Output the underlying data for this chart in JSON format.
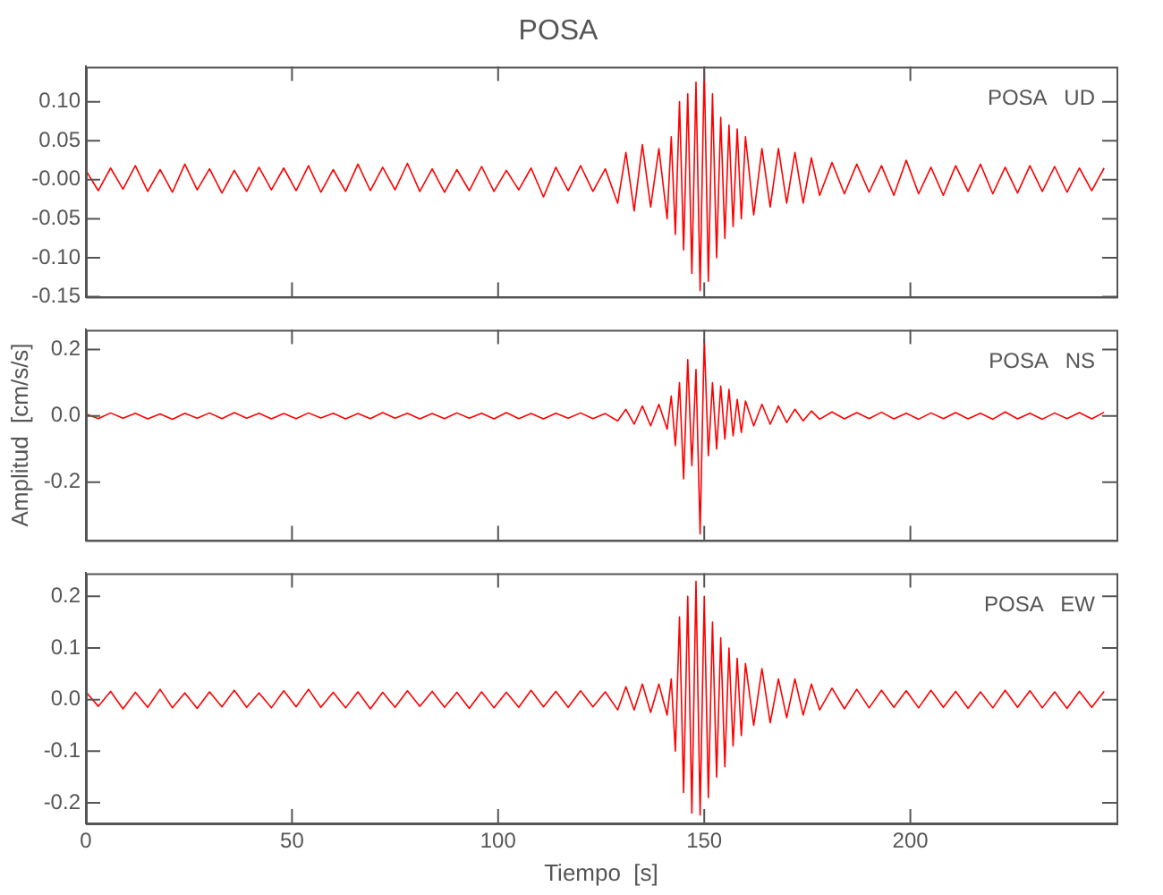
{
  "chart_data": [
    {
      "type": "line",
      "title": "POSA",
      "annotations": [
        "POSA   UD"
      ],
      "xlim": [
        0,
        250
      ],
      "xticks": [
        0,
        50,
        100,
        150,
        200
      ],
      "ylim": [
        -0.15,
        0.145
      ],
      "yticks": [
        {
          "value": -0.15,
          "label": "-0.15"
        },
        {
          "value": -0.1,
          "label": "-0.10"
        },
        {
          "value": -0.05,
          "label": "-0.05"
        },
        {
          "value": 0,
          "label": "-0.00"
        },
        {
          "value": 0.05,
          "label": "0.05"
        },
        {
          "value": 0.1,
          "label": "0.10"
        }
      ],
      "tick_labels": "y",
      "grid": false,
      "legend": false,
      "marker": "none",
      "line_style": "solid",
      "series": [
        {
          "color": "#ff0000",
          "x": [
            0,
            3,
            6,
            9,
            12,
            15,
            18,
            21,
            24,
            27,
            30,
            33,
            36,
            39,
            42,
            45,
            48,
            51,
            54,
            57,
            60,
            63,
            66,
            69,
            72,
            75,
            78,
            81,
            84,
            87,
            90,
            93,
            96,
            99,
            102,
            105,
            108,
            111,
            114,
            117,
            120,
            123,
            126,
            129,
            131,
            133,
            135,
            137,
            139,
            141,
            142,
            143,
            144,
            145,
            146,
            147,
            148,
            149,
            150,
            151,
            152,
            153,
            154,
            155,
            156,
            157,
            158,
            159,
            160,
            162,
            164,
            166,
            168,
            170,
            172,
            174,
            176,
            178,
            181,
            184,
            187,
            190,
            193,
            196,
            199,
            202,
            205,
            208,
            211,
            214,
            217,
            220,
            223,
            226,
            229,
            232,
            235,
            238,
            241,
            244,
            247
          ],
          "values": [
            0.012,
            -0.014,
            0.015,
            -0.012,
            0.018,
            -0.015,
            0.013,
            -0.016,
            0.02,
            -0.013,
            0.014,
            -0.017,
            0.012,
            -0.015,
            0.016,
            -0.013,
            0.015,
            -0.014,
            0.018,
            -0.016,
            0.013,
            -0.015,
            0.02,
            -0.014,
            0.016,
            -0.013,
            0.021,
            -0.015,
            0.014,
            -0.016,
            0.013,
            -0.014,
            0.017,
            -0.015,
            0.012,
            -0.013,
            0.015,
            -0.022,
            0.016,
            -0.014,
            0.018,
            -0.015,
            0.014,
            -0.03,
            0.035,
            -0.04,
            0.045,
            -0.035,
            0.04,
            -0.05,
            0.055,
            -0.07,
            0.1,
            -0.09,
            0.11,
            -0.12,
            0.125,
            -0.142,
            0.145,
            -0.13,
            0.11,
            -0.1,
            0.08,
            -0.075,
            0.07,
            -0.06,
            0.065,
            -0.05,
            0.055,
            -0.045,
            0.04,
            -0.035,
            0.04,
            -0.03,
            0.035,
            -0.03,
            0.028,
            -0.02,
            0.022,
            -0.018,
            0.02,
            -0.016,
            0.018,
            -0.02,
            0.025,
            -0.018,
            0.016,
            -0.02,
            0.018,
            -0.015,
            0.02,
            -0.018,
            0.016,
            -0.017,
            0.018,
            -0.015,
            0.017,
            -0.016,
            0.015,
            -0.014,
            0.015
          ]
        }
      ]
    },
    {
      "type": "line",
      "ylabel": "Amplitud  [cm/s/s]",
      "annotations": [
        "POSA   NS"
      ],
      "xlim": [
        0,
        250
      ],
      "xticks": [
        0,
        50,
        100,
        150,
        200
      ],
      "ylim": [
        -0.375,
        0.26
      ],
      "yticks": [
        {
          "value": -0.2,
          "label": "-0.2"
        },
        {
          "value": 0,
          "label": "0.0"
        },
        {
          "value": 0.2,
          "label": "0.2"
        }
      ],
      "tick_labels": "y",
      "grid": false,
      "legend": false,
      "marker": "none",
      "line_style": "solid",
      "series": [
        {
          "color": "#ff0000",
          "x": [
            0,
            3,
            6,
            9,
            12,
            15,
            18,
            21,
            24,
            27,
            30,
            33,
            36,
            39,
            42,
            45,
            48,
            51,
            54,
            57,
            60,
            63,
            66,
            69,
            72,
            75,
            78,
            81,
            84,
            87,
            90,
            93,
            96,
            99,
            102,
            105,
            108,
            111,
            114,
            117,
            120,
            123,
            126,
            129,
            131,
            133,
            135,
            137,
            139,
            141,
            142,
            143,
            144,
            145,
            146,
            147,
            148,
            149,
            150,
            151,
            152,
            153,
            154,
            155,
            156,
            157,
            158,
            159,
            160,
            162,
            164,
            166,
            168,
            170,
            172,
            174,
            176,
            178,
            181,
            184,
            187,
            190,
            193,
            196,
            199,
            202,
            205,
            208,
            211,
            214,
            217,
            220,
            223,
            226,
            229,
            232,
            235,
            238,
            241,
            244,
            247
          ],
          "values": [
            0.006,
            -0.008,
            0.009,
            -0.007,
            0.008,
            -0.009,
            0.006,
            -0.01,
            0.008,
            -0.007,
            0.009,
            -0.008,
            0.01,
            -0.007,
            0.008,
            -0.009,
            0.007,
            -0.008,
            0.009,
            -0.006,
            0.008,
            -0.009,
            0.007,
            -0.008,
            0.01,
            -0.007,
            0.008,
            -0.009,
            0.007,
            -0.008,
            0.009,
            -0.007,
            0.008,
            -0.009,
            0.01,
            -0.008,
            0.007,
            -0.009,
            0.008,
            -0.007,
            0.009,
            -0.008,
            0.007,
            -0.015,
            0.02,
            -0.025,
            0.03,
            -0.03,
            0.035,
            -0.04,
            0.06,
            -0.09,
            0.1,
            -0.19,
            0.17,
            -0.15,
            0.14,
            -0.356,
            0.234,
            -0.12,
            0.1,
            -0.1,
            0.09,
            -0.07,
            0.08,
            -0.06,
            0.05,
            -0.05,
            0.045,
            -0.03,
            0.035,
            -0.025,
            0.03,
            -0.02,
            0.02,
            -0.015,
            0.015,
            -0.01,
            0.012,
            -0.009,
            0.01,
            -0.008,
            0.011,
            -0.009,
            0.008,
            -0.01,
            0.009,
            -0.008,
            0.01,
            -0.009,
            0.008,
            -0.01,
            0.012,
            -0.009,
            0.008,
            -0.01,
            0.009,
            -0.008,
            0.01,
            -0.009,
            0.011
          ]
        }
      ]
    },
    {
      "type": "line",
      "xlabel": "Tiempo  [s]",
      "annotations": [
        "POSA   EW"
      ],
      "xlim": [
        0,
        250
      ],
      "xticks": [
        0,
        50,
        100,
        150,
        200
      ],
      "ylim": [
        -0.24,
        0.245
      ],
      "yticks": [
        {
          "value": -0.2,
          "label": "-0.2"
        },
        {
          "value": -0.1,
          "label": "-0.1"
        },
        {
          "value": 0,
          "label": "0.0"
        },
        {
          "value": 0.1,
          "label": "0.1"
        },
        {
          "value": 0.2,
          "label": "0.2"
        }
      ],
      "grid": false,
      "legend": false,
      "marker": "none",
      "line_style": "solid",
      "series": [
        {
          "color": "#ff0000",
          "x": [
            0,
            3,
            6,
            9,
            12,
            15,
            18,
            21,
            24,
            27,
            30,
            33,
            36,
            39,
            42,
            45,
            48,
            51,
            54,
            57,
            60,
            63,
            66,
            69,
            72,
            75,
            78,
            81,
            84,
            87,
            90,
            93,
            96,
            99,
            102,
            105,
            108,
            111,
            114,
            117,
            120,
            123,
            126,
            129,
            131,
            133,
            135,
            137,
            139,
            141,
            142,
            143,
            144,
            145,
            146,
            147,
            148,
            149,
            150,
            151,
            152,
            153,
            154,
            155,
            156,
            157,
            158,
            159,
            160,
            162,
            164,
            166,
            168,
            170,
            172,
            174,
            176,
            178,
            181,
            184,
            187,
            190,
            193,
            196,
            199,
            202,
            205,
            208,
            211,
            214,
            217,
            220,
            223,
            226,
            229,
            232,
            235,
            238,
            241,
            244,
            247
          ],
          "values": [
            0.015,
            -0.013,
            0.016,
            -0.018,
            0.014,
            -0.015,
            0.02,
            -0.016,
            0.013,
            -0.017,
            0.015,
            -0.014,
            0.018,
            -0.015,
            0.013,
            -0.016,
            0.017,
            -0.014,
            0.02,
            -0.015,
            0.014,
            -0.016,
            0.015,
            -0.018,
            0.014,
            -0.015,
            0.017,
            -0.013,
            0.016,
            -0.015,
            0.014,
            -0.017,
            0.015,
            -0.016,
            0.014,
            -0.015,
            0.018,
            -0.014,
            0.016,
            -0.015,
            0.017,
            -0.014,
            0.015,
            -0.02,
            0.025,
            -0.02,
            0.03,
            -0.025,
            0.03,
            -0.03,
            0.04,
            -0.1,
            0.16,
            -0.18,
            0.2,
            -0.22,
            0.229,
            -0.224,
            0.2,
            -0.19,
            0.15,
            -0.15,
            0.12,
            -0.13,
            0.1,
            -0.09,
            0.08,
            -0.07,
            0.07,
            -0.05,
            0.06,
            -0.045,
            0.04,
            -0.035,
            0.04,
            -0.03,
            0.03,
            -0.02,
            0.022,
            -0.018,
            0.02,
            -0.016,
            0.018,
            -0.015,
            0.017,
            -0.016,
            0.018,
            -0.015,
            0.016,
            -0.017,
            0.015,
            -0.016,
            0.018,
            -0.015,
            0.017,
            -0.016,
            0.015,
            -0.017,
            0.016,
            -0.015,
            0.016
          ]
        }
      ]
    }
  ]
}
